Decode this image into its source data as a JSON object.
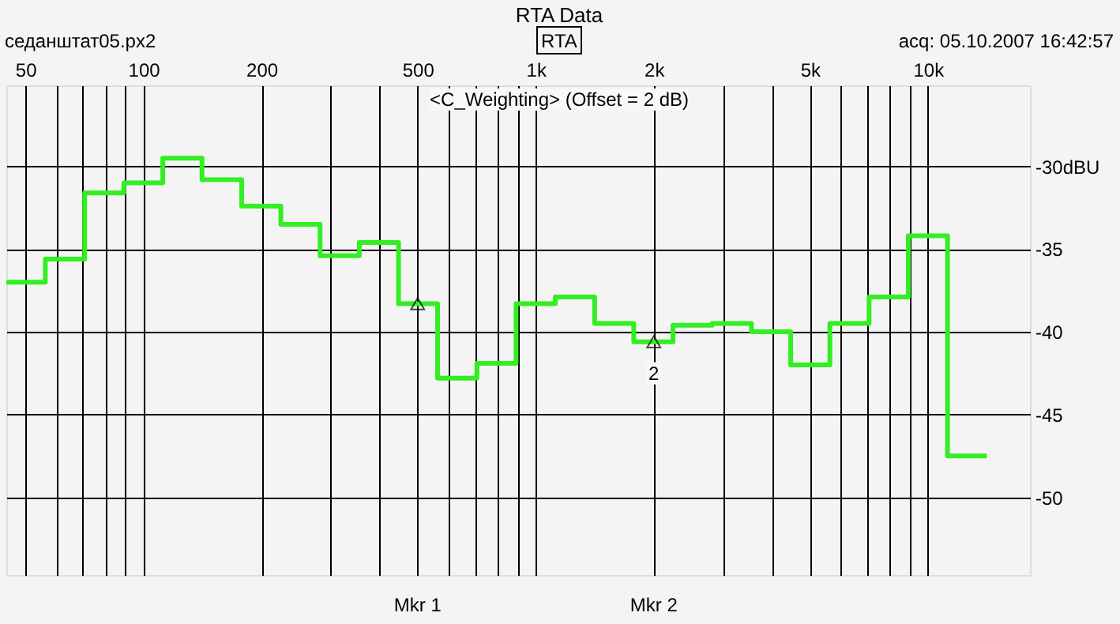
{
  "chart_data": {
    "type": "step",
    "title": "RTA Data",
    "annotations": [
      "RTA",
      "седанштат05.px2",
      "acq: 05.10.2007 16:42:57",
      "<C_Weighting> (Offset = 2 dB)",
      "2",
      "Mkr 1",
      "Mkr 2"
    ],
    "x": [
      44.7,
      56.2,
      70.8,
      89.1,
      112,
      141,
      178,
      224,
      282,
      355,
      447,
      562,
      708,
      891,
      1122,
      1413,
      1778,
      2239,
      2818,
      3548,
      4467,
      5623,
      7079,
      8913,
      11220,
      14125
    ],
    "series": [
      {
        "color": "#33ee22",
        "values": [
          -37.0,
          -35.6,
          -31.6,
          -31.0,
          -29.5,
          -30.8,
          -32.4,
          -33.5,
          -35.4,
          -34.6,
          -38.3,
          -42.8,
          -41.9,
          -38.3,
          -37.9,
          -39.5,
          -40.6,
          -39.6,
          -39.5,
          -40.0,
          -42.0,
          -39.5,
          -37.9,
          -34.2,
          -47.5,
          -47.5
        ]
      },
      {
        "type": "scatter",
        "marker": "triangle",
        "color": "#000000",
        "x": [
          500,
          2000
        ],
        "values": [
          -38.3,
          -40.6
        ]
      }
    ],
    "log": "x",
    "grid": true,
    "xlim": [
      44.7,
      18200
    ],
    "ylim": [
      -54.7,
      -25.1
    ],
    "xticks": [
      50,
      {
        "value": 60,
        "label": null
      },
      {
        "value": 70,
        "label": null
      },
      {
        "value": 80,
        "label": null
      },
      {
        "value": 90,
        "label": null
      },
      100,
      200,
      {
        "value": 300,
        "label": null
      },
      {
        "value": 400,
        "label": null
      },
      500,
      {
        "value": 600,
        "label": null
      },
      {
        "value": 700,
        "label": null
      },
      {
        "value": 800,
        "label": null
      },
      {
        "value": 900,
        "label": null
      },
      {
        "value": 1000,
        "label": "1k"
      },
      {
        "value": 2000,
        "label": "2k"
      },
      {
        "value": 3000,
        "label": null
      },
      {
        "value": 4000,
        "label": null
      },
      {
        "value": 5000,
        "label": "5k"
      },
      {
        "value": 6000,
        "label": null
      },
      {
        "value": 7000,
        "label": null
      },
      {
        "value": 8000,
        "label": null
      },
      {
        "value": 9000,
        "label": null
      },
      {
        "value": 10000,
        "label": "10k"
      }
    ],
    "yticks": [
      {
        "value": -30,
        "label": "-30dBU"
      },
      -35,
      -40,
      -45,
      -50
    ]
  }
}
